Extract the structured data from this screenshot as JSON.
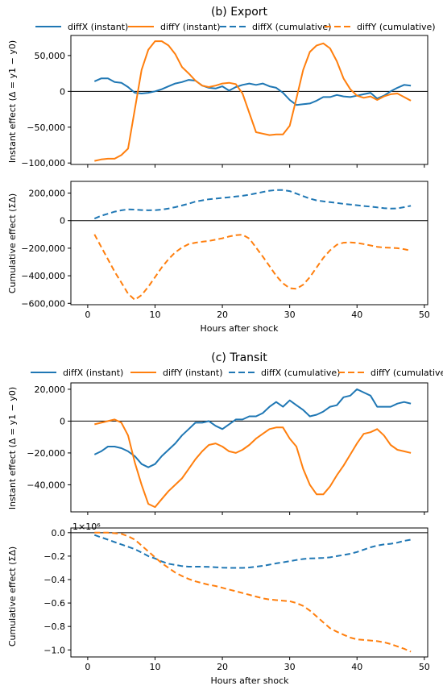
{
  "figure": {
    "legend_entries": [
      "diffX (instant)",
      "diffY (instant)",
      "diffX (cumulative)",
      "diffY (cumulative)"
    ],
    "colors": {
      "diffX": "#1f77b4",
      "diffY": "#ff7f0e",
      "axis": "#000000"
    }
  },
  "chart_data": [
    {
      "type": "line",
      "panel": "export-instant",
      "title": "(b) Export",
      "xlabel": "",
      "ylabel": "Instant effect (Δ = y1 − y0)",
      "xlim": [
        -2.5,
        50.5
      ],
      "ylim": [
        -102000,
        78000
      ],
      "yticks": [
        -100000,
        -50000,
        0,
        50000
      ],
      "ytick_labels": [
        "−100,000",
        "−50,000",
        "0",
        "50,000"
      ],
      "legend": "top-center, outside, 4 columns",
      "zero_line": true,
      "x": [
        1,
        2,
        3,
        4,
        5,
        6,
        7,
        8,
        9,
        10,
        11,
        12,
        13,
        14,
        15,
        16,
        17,
        18,
        19,
        20,
        21,
        22,
        23,
        24,
        25,
        26,
        27,
        28,
        29,
        30,
        31,
        32,
        33,
        34,
        35,
        36,
        37,
        38,
        39,
        40,
        41,
        42,
        43,
        44,
        45,
        46,
        47,
        48
      ],
      "series": [
        {
          "name": "diffX (instant)",
          "style": "solid",
          "color": "#1f77b4",
          "values": [
            14000,
            18000,
            18000,
            13000,
            12000,
            6000,
            -2000,
            -3000,
            -2000,
            0,
            3000,
            7000,
            11000,
            13000,
            16000,
            15000,
            8000,
            5000,
            4000,
            7000,
            1000,
            6000,
            9000,
            11000,
            9000,
            11000,
            7000,
            5000,
            -2000,
            -12000,
            -19000,
            -18000,
            -17000,
            -13000,
            -8000,
            -8000,
            -5000,
            -7000,
            -8000,
            -6000,
            -4000,
            -2000,
            -10000,
            -6000,
            0,
            5000,
            9000,
            8000
          ]
        },
        {
          "name": "diffY (instant)",
          "style": "solid",
          "color": "#ff7f0e",
          "values": [
            -97000,
            -95000,
            -94000,
            -94000,
            -89000,
            -80000,
            -25000,
            30000,
            58000,
            70000,
            70000,
            64000,
            52000,
            34000,
            25000,
            15000,
            8000,
            6000,
            8000,
            11000,
            12000,
            10000,
            -3000,
            -30000,
            -57000,
            -59000,
            -61000,
            -60000,
            -60000,
            -48000,
            -10000,
            30000,
            55000,
            64000,
            67000,
            60000,
            42000,
            18000,
            3000,
            -6000,
            -9000,
            -7000,
            -12000,
            -7000,
            -4000,
            -3000,
            -8000,
            -13000
          ]
        }
      ]
    },
    {
      "type": "line",
      "panel": "export-cumulative",
      "title": "",
      "xlabel": "Hours after shock",
      "ylabel": "Cumulative effect (ΣΔ)",
      "xlim": [
        -2.5,
        50.5
      ],
      "ylim": [
        -610000,
        285000
      ],
      "xticks": [
        0,
        10,
        20,
        30,
        40,
        50
      ],
      "yticks": [
        -600000,
        -400000,
        -200000,
        0,
        200000
      ],
      "ytick_labels": [
        "−600,000",
        "−400,000",
        "−200,000",
        "0",
        "200,000"
      ],
      "zero_line": true,
      "x": [
        1,
        2,
        3,
        4,
        5,
        6,
        7,
        8,
        9,
        10,
        11,
        12,
        13,
        14,
        15,
        16,
        17,
        18,
        19,
        20,
        21,
        22,
        23,
        24,
        25,
        26,
        27,
        28,
        29,
        30,
        31,
        32,
        33,
        34,
        35,
        36,
        37,
        38,
        39,
        40,
        41,
        42,
        43,
        44,
        45,
        46,
        47,
        48
      ],
      "series": [
        {
          "name": "diffX (cumulative)",
          "style": "dashed",
          "color": "#1f77b4",
          "values": [
            15000,
            35000,
            50000,
            65000,
            75000,
            82000,
            80000,
            77000,
            75000,
            76000,
            80000,
            88000,
            98000,
            110000,
            123000,
            138000,
            147000,
            155000,
            160000,
            165000,
            170000,
            175000,
            180000,
            188000,
            198000,
            208000,
            217000,
            222000,
            222000,
            214000,
            196000,
            178000,
            160000,
            147000,
            140000,
            134000,
            128000,
            122000,
            117000,
            112000,
            106000,
            102000,
            96000,
            90000,
            87000,
            89000,
            98000,
            108000
          ]
        },
        {
          "name": "diffY (cumulative)",
          "style": "dashed",
          "color": "#ff7f0e",
          "values": [
            -100000,
            -190000,
            -280000,
            -370000,
            -450000,
            -530000,
            -575000,
            -540000,
            -480000,
            -410000,
            -340000,
            -280000,
            -230000,
            -195000,
            -170000,
            -160000,
            -153000,
            -147000,
            -138000,
            -128000,
            -115000,
            -105000,
            -102000,
            -130000,
            -195000,
            -260000,
            -330000,
            -400000,
            -455000,
            -490000,
            -495000,
            -465000,
            -410000,
            -340000,
            -270000,
            -215000,
            -175000,
            -160000,
            -158000,
            -162000,
            -170000,
            -180000,
            -190000,
            -195000,
            -197000,
            -200000,
            -207000,
            -218000
          ]
        }
      ]
    },
    {
      "type": "line",
      "panel": "transit-instant",
      "title": "(c) Transit",
      "xlabel": "",
      "ylabel": "Instant effect (Δ = y1 − y0)",
      "xlim": [
        -2.5,
        50.5
      ],
      "ylim": [
        -57000,
        24000
      ],
      "yticks": [
        -40000,
        -20000,
        0,
        20000
      ],
      "ytick_labels": [
        "−40,000",
        "−20,000",
        "0",
        "20,000"
      ],
      "legend": "top-center, outside, 4 columns",
      "zero_line": true,
      "x": [
        1,
        2,
        3,
        4,
        5,
        6,
        7,
        8,
        9,
        10,
        11,
        12,
        13,
        14,
        15,
        16,
        17,
        18,
        19,
        20,
        21,
        22,
        23,
        24,
        25,
        26,
        27,
        28,
        29,
        30,
        31,
        32,
        33,
        34,
        35,
        36,
        37,
        38,
        39,
        40,
        41,
        42,
        43,
        44,
        45,
        46,
        47,
        48
      ],
      "series": [
        {
          "name": "diffX (instant)",
          "style": "solid",
          "color": "#1f77b4",
          "values": [
            -21000,
            -19000,
            -16000,
            -16000,
            -17000,
            -19000,
            -22000,
            -27000,
            -29000,
            -27000,
            -22000,
            -18000,
            -14000,
            -9000,
            -5000,
            -1000,
            -1000,
            0,
            -3000,
            -5000,
            -2000,
            1000,
            1000,
            3000,
            3000,
            5000,
            9000,
            12000,
            9000,
            13000,
            10000,
            7000,
            3000,
            4000,
            6000,
            9000,
            10000,
            15000,
            16000,
            20000,
            18000,
            16000,
            9000,
            9000,
            9000,
            11000,
            12000,
            11000
          ]
        },
        {
          "name": "diffY (instant)",
          "style": "solid",
          "color": "#ff7f0e",
          "values": [
            -2000,
            -1000,
            0,
            1000,
            -1000,
            -9000,
            -26000,
            -40000,
            -52000,
            -54000,
            -49000,
            -44000,
            -40000,
            -36000,
            -30000,
            -24000,
            -19000,
            -15000,
            -14000,
            -16000,
            -19000,
            -20000,
            -18000,
            -15000,
            -11000,
            -8000,
            -5000,
            -4000,
            -4000,
            -11000,
            -16000,
            -30000,
            -40000,
            -46000,
            -46000,
            -41000,
            -34000,
            -28000,
            -21000,
            -14000,
            -8000,
            -7000,
            -5000,
            -9000,
            -15000,
            -18000,
            -19000,
            -20000
          ]
        }
      ]
    },
    {
      "type": "line",
      "panel": "transit-cumulative",
      "title": "",
      "xlabel": "Hours after shock",
      "ylabel": "Cumulative effect (ΣΔ)",
      "offset_label": "1×10⁶",
      "xlim": [
        -2.5,
        50.5
      ],
      "ylim": [
        -1.06,
        0.04
      ],
      "xticks": [
        0,
        10,
        20,
        30,
        40,
        50
      ],
      "yticks": [
        -1.0,
        -0.8,
        -0.6,
        -0.4,
        -0.2,
        0.0
      ],
      "ytick_labels": [
        "−1.0",
        "−0.8",
        "−0.6",
        "−0.4",
        "−0.2",
        "0.0"
      ],
      "zero_line": true,
      "x": [
        1,
        2,
        3,
        4,
        5,
        6,
        7,
        8,
        9,
        10,
        11,
        12,
        13,
        14,
        15,
        16,
        17,
        18,
        19,
        20,
        21,
        22,
        23,
        24,
        25,
        26,
        27,
        28,
        29,
        30,
        31,
        32,
        33,
        34,
        35,
        36,
        37,
        38,
        39,
        40,
        41,
        42,
        43,
        44,
        45,
        46,
        47,
        48
      ],
      "series": [
        {
          "name": "diffX (cumulative)",
          "style": "dashed",
          "color": "#1f77b4",
          "values": [
            -0.02,
            -0.04,
            -0.06,
            -0.08,
            -0.1,
            -0.12,
            -0.14,
            -0.17,
            -0.2,
            -0.22,
            -0.245,
            -0.265,
            -0.275,
            -0.285,
            -0.29,
            -0.29,
            -0.29,
            -0.292,
            -0.295,
            -0.298,
            -0.3,
            -0.3,
            -0.3,
            -0.297,
            -0.29,
            -0.283,
            -0.273,
            -0.262,
            -0.253,
            -0.243,
            -0.233,
            -0.225,
            -0.22,
            -0.218,
            -0.215,
            -0.21,
            -0.2,
            -0.19,
            -0.18,
            -0.165,
            -0.145,
            -0.125,
            -0.11,
            -0.1,
            -0.095,
            -0.085,
            -0.07,
            -0.06
          ]
        },
        {
          "name": "diffY (cumulative)",
          "style": "dashed",
          "color": "#ff7f0e",
          "values": [
            0,
            0,
            0,
            -0.005,
            -0.01,
            -0.03,
            -0.06,
            -0.11,
            -0.16,
            -0.21,
            -0.26,
            -0.3,
            -0.34,
            -0.37,
            -0.395,
            -0.415,
            -0.43,
            -0.445,
            -0.455,
            -0.47,
            -0.485,
            -0.5,
            -0.515,
            -0.53,
            -0.545,
            -0.56,
            -0.57,
            -0.575,
            -0.58,
            -0.585,
            -0.6,
            -0.625,
            -0.665,
            -0.715,
            -0.765,
            -0.815,
            -0.845,
            -0.87,
            -0.895,
            -0.91,
            -0.915,
            -0.92,
            -0.925,
            -0.935,
            -0.95,
            -0.97,
            -0.99,
            -1.015
          ]
        }
      ]
    }
  ]
}
